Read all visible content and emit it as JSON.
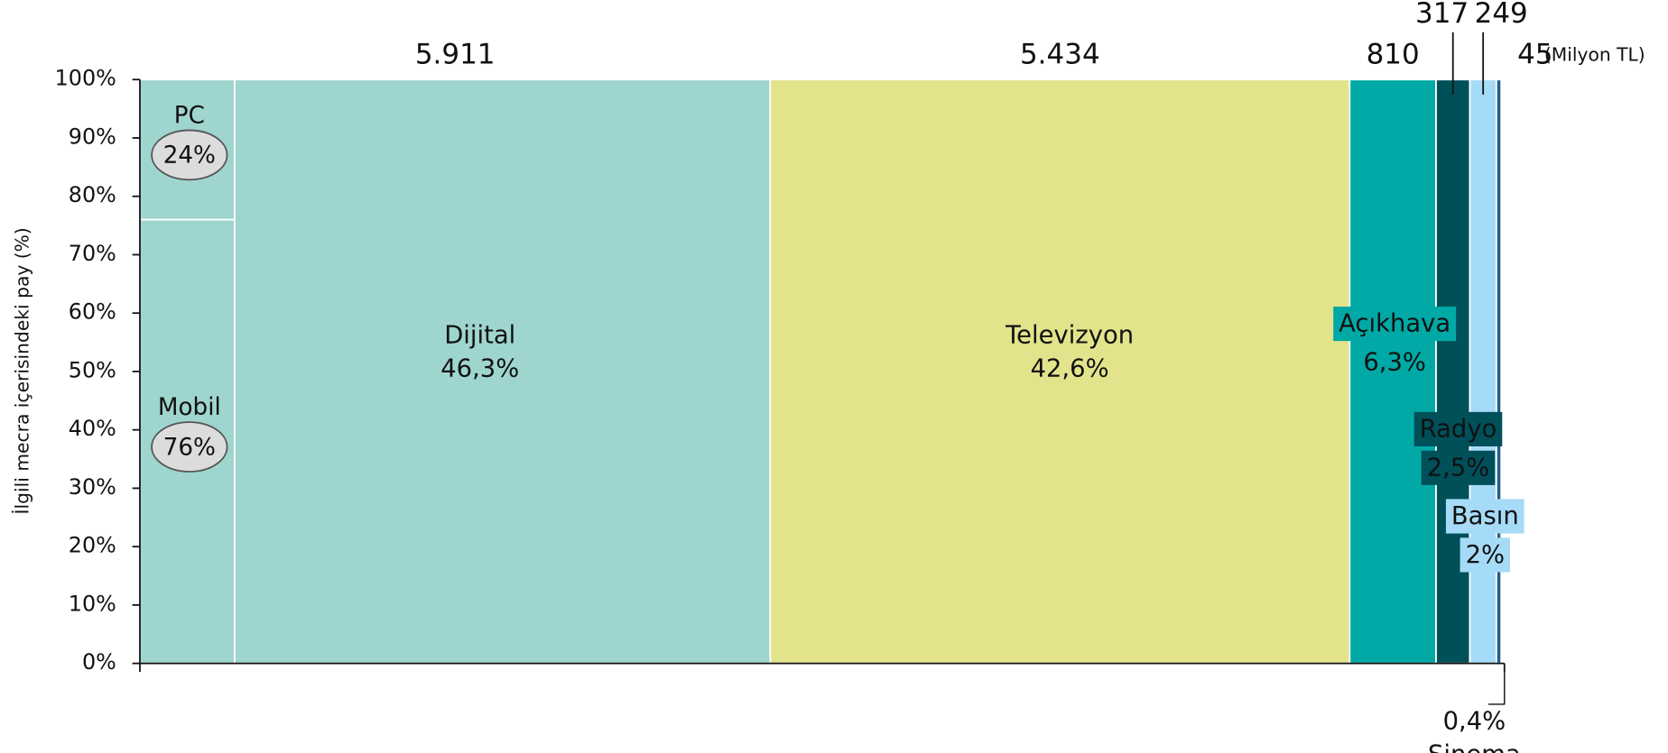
{
  "chart_data": {
    "type": "mekko",
    "y_label": "İlgili mecra içerisindeki pay (%)",
    "unit": "(Milyon TL)",
    "ylim": [
      0,
      100
    ],
    "yticks": [
      {
        "value": 0,
        "label": "0%"
      },
      {
        "value": 10,
        "label": "10%"
      },
      {
        "value": 20,
        "label": "20%"
      },
      {
        "value": 30,
        "label": "30%"
      },
      {
        "value": 40,
        "label": "40%"
      },
      {
        "value": 50,
        "label": "50%"
      },
      {
        "value": 60,
        "label": "60%"
      },
      {
        "value": 70,
        "label": "70%"
      },
      {
        "value": 80,
        "label": "80%"
      },
      {
        "value": 90,
        "label": "90%"
      },
      {
        "value": 100,
        "label": "100%"
      }
    ],
    "categories": [
      "Dijital",
      "Televizyon",
      "Açıkhava",
      "Radyo",
      "Basın",
      "Sinema"
    ],
    "values": [
      5911,
      5434,
      810,
      317,
      249,
      45
    ],
    "value_labels": [
      "5.911",
      "5.434",
      "810",
      "317",
      "249",
      "45"
    ],
    "shares": [
      46.3,
      42.6,
      6.3,
      2.5,
      2,
      0.4
    ],
    "share_labels": [
      "46,3%",
      "42,6%",
      "6,3%",
      "2,5%",
      "2%",
      "0,4%"
    ],
    "colors": [
      "#9fd5cf",
      "#e3e38c",
      "#00a9a5",
      "#00505a",
      "#a6dbf8",
      "#1f5f8b"
    ],
    "sub": {
      "names": [
        "PC",
        "Mobil"
      ],
      "values": [
        24,
        76
      ],
      "value_labels": [
        "24%",
        "76%"
      ]
    }
  }
}
